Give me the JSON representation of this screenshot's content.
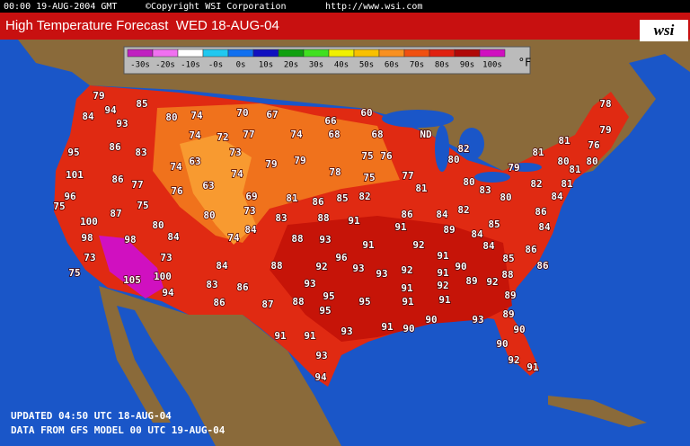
{
  "header": {
    "timestamp": "00:00 19-AUG-2004 GMT",
    "copyright": "©Copyright WSI Corporation",
    "url": "http://www.wsi.com"
  },
  "title": "High Temperature Forecast  WED 18-AUG-04",
  "logo": "wsi",
  "legend": {
    "items": [
      {
        "label": "-30s",
        "color": "#c020c0"
      },
      {
        "label": "-20s",
        "color": "#f070f0"
      },
      {
        "label": "-10s",
        "color": "#ffffff"
      },
      {
        "label": "-0s",
        "color": "#20c8f0"
      },
      {
        "label": "0s",
        "color": "#1070f0"
      },
      {
        "label": "10s",
        "color": "#1010c0"
      },
      {
        "label": "20s",
        "color": "#10a010"
      },
      {
        "label": "30s",
        "color": "#40e020"
      },
      {
        "label": "40s",
        "color": "#f0f000"
      },
      {
        "label": "50s",
        "color": "#f8c000"
      },
      {
        "label": "60s",
        "color": "#f89020"
      },
      {
        "label": "70s",
        "color": "#f05010"
      },
      {
        "label": "80s",
        "color": "#e02010"
      },
      {
        "label": "90s",
        "color": "#b00808"
      },
      {
        "label": "100s",
        "color": "#d010c0"
      }
    ],
    "unit": "°F"
  },
  "map": {
    "state_label": "ND",
    "temperatures": [
      79,
      85,
      94,
      84,
      93,
      80,
      74,
      70,
      67,
      66,
      60,
      78,
      74,
      72,
      77,
      74,
      68,
      68,
      81,
      79,
      76,
      95,
      86,
      83,
      73,
      82,
      75,
      76,
      80,
      79,
      81,
      74,
      63,
      79,
      79,
      80,
      81,
      80,
      101,
      86,
      77,
      74,
      78,
      75,
      77,
      82,
      81,
      96,
      63,
      76,
      81,
      80,
      83,
      84,
      75,
      81,
      86,
      85,
      82,
      69,
      80,
      87,
      75,
      73,
      80,
      83,
      88,
      91,
      86,
      84,
      82,
      86,
      100,
      80,
      84,
      85,
      84,
      98,
      98,
      84,
      74,
      88,
      93,
      91,
      91,
      89,
      84,
      92,
      84,
      86,
      73,
      73,
      88,
      96,
      91,
      85,
      86,
      84,
      92,
      93,
      93,
      92,
      90,
      88,
      75,
      100,
      105,
      91,
      89,
      92,
      83,
      86,
      93,
      91,
      92,
      89,
      94,
      95,
      91,
      91,
      86,
      87,
      88,
      95,
      95,
      89,
      90,
      93,
      91,
      90,
      90,
      91,
      91,
      93,
      90,
      93,
      92,
      91,
      94
    ]
  },
  "footer": {
    "updated": "UPDATED 04:50 UTC 18-AUG-04",
    "source": "DATA FROM GFS MODEL 00 UTC 19-AUG-04"
  }
}
